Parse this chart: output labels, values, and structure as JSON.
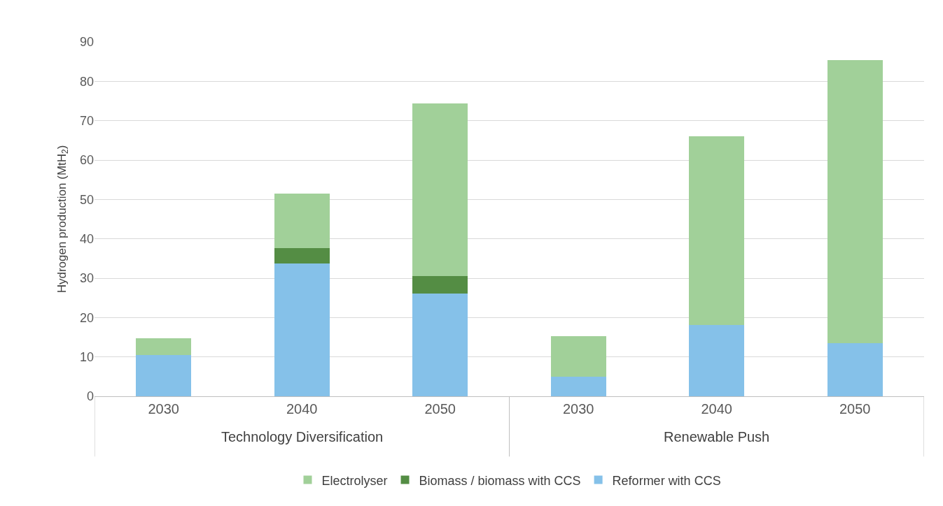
{
  "chart_data": {
    "type": "bar",
    "stacked": true,
    "ylabel": "Hydrogen production (MtH$_{2}$)",
    "categories": [
      "2030",
      "2040",
      "2050",
      "2030",
      "2040",
      "2050"
    ],
    "annotations": [
      "Technology Diversification",
      "Renewable Push"
    ],
    "series": [
      {
        "name": "Reformer with CCS",
        "color": "#85c1e9",
        "values": [
          10.5,
          33.7,
          26.1,
          5.0,
          18.1,
          13.5
        ]
      },
      {
        "name": "Biomass / biomass with CCS",
        "color": "#548d44",
        "values": [
          0,
          4.0,
          4.4,
          0,
          0,
          0
        ]
      },
      {
        "name": "Electrolyser",
        "color": "#a1d099",
        "values": [
          4.2,
          13.8,
          43.9,
          10.3,
          48.0,
          71.8
        ]
      }
    ],
    "ylim": [
      0,
      90
    ],
    "yticks": [
      0,
      10,
      20,
      30,
      40,
      50,
      60,
      70,
      80,
      90
    ],
    "grid": "y",
    "legend": "bottom"
  }
}
